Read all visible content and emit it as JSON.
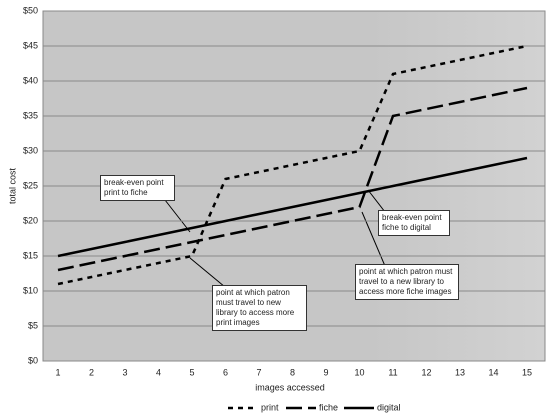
{
  "chart_data": {
    "type": "line",
    "y_label": "total cost",
    "x_label": "images accessed",
    "categories": [
      "1",
      "2",
      "3",
      "4",
      "5",
      "6",
      "7",
      "8",
      "9",
      "10",
      "11",
      "12",
      "13",
      "14",
      "15"
    ],
    "series": [
      {
        "name": "print",
        "color": "#000000",
        "values": [
          11,
          12,
          13,
          14,
          15,
          26,
          27,
          28,
          29,
          30,
          41,
          42,
          43,
          44,
          45
        ]
      },
      {
        "name": "fiche",
        "color": "#000000",
        "values": [
          13,
          14,
          15,
          16,
          17,
          18,
          19,
          20,
          21,
          22,
          35,
          36,
          37,
          38,
          39
        ]
      },
      {
        "name": "digital",
        "color": "#000000",
        "values": [
          15,
          16,
          17,
          18,
          19,
          20,
          21,
          22,
          23,
          24,
          25,
          26,
          27,
          28,
          29
        ]
      }
    ],
    "ylim": [
      0,
      50
    ],
    "yticks": [
      {
        "value": 0,
        "label": "$0"
      },
      {
        "value": 5,
        "label": "$5"
      },
      {
        "value": 10,
        "label": "$10"
      },
      {
        "value": 15,
        "label": "$15"
      },
      {
        "value": 20,
        "label": "$20"
      },
      {
        "value": 25,
        "label": "$25"
      },
      {
        "value": 30,
        "label": "$30"
      },
      {
        "value": 35,
        "label": "$35"
      },
      {
        "value": 40,
        "label": "$40"
      },
      {
        "value": 45,
        "label": "$45"
      },
      {
        "value": 50,
        "label": "$50"
      }
    ],
    "grid": true,
    "legend": "bottom",
    "annotations": [
      "break-even point print to fiche",
      "break-even point fiche to digital",
      "point at which patron must travel to a new library to access more fiche images",
      "point at which patron must travel to new library to access more print images"
    ]
  }
}
